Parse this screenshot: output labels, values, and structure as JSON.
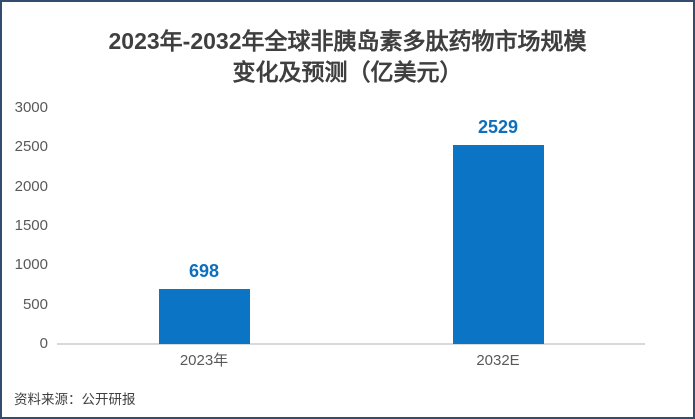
{
  "title": {
    "line1": "2023年-2032年全球非胰岛素多肽药物市场规模",
    "line2": "变化及预测（亿美元）"
  },
  "source": "资料来源：公开研报",
  "colors": {
    "bar": "#0b74c4",
    "value_label": "#0d6fbd",
    "frame_border": "#344d6e",
    "axis_line": "#d9d9d9",
    "tick_text": "#595959",
    "title_text": "#3f3f3f"
  },
  "chart_data": {
    "type": "bar",
    "title": "2023年-2032年全球非胰岛素多肽药物市场规模变化及预测（亿美元）",
    "categories": [
      "2023年",
      "2032E"
    ],
    "values": [
      698,
      2529
    ],
    "xlabel": "",
    "ylabel": "",
    "ylim": [
      0,
      3000
    ],
    "yticks": [
      0,
      500,
      1000,
      1500,
      2000,
      2500,
      3000
    ],
    "grid": false,
    "legend": "none",
    "value_labels_shown": true
  }
}
